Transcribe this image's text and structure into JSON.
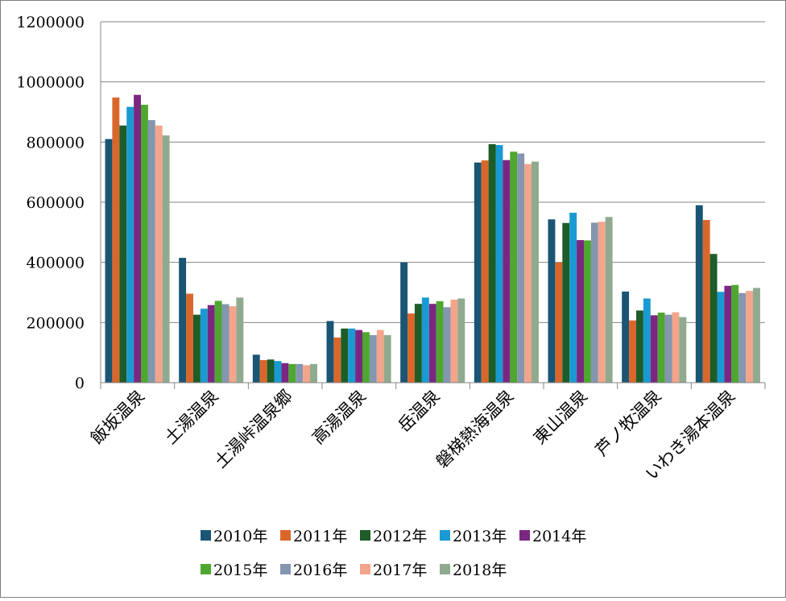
{
  "chart_data": {
    "type": "bar",
    "title": "",
    "xlabel": "",
    "ylabel": "",
    "ylim": [
      0,
      1200000
    ],
    "yticks": [
      "0",
      "200000",
      "400000",
      "600000",
      "800000",
      "1000000",
      "1200000"
    ],
    "grid": true,
    "legend_position": "bottom",
    "categories": [
      "飯坂温泉",
      "土湯温泉",
      "土湯峠温泉郷",
      "高湯温泉",
      "岳温泉",
      "磐梯熱海温泉",
      "東山温泉",
      "芦ノ牧温泉",
      "いわき湯本温泉"
    ],
    "series": [
      {
        "name": "2010年",
        "color": "#1a5574",
        "values": [
          810000,
          415000,
          93000,
          205000,
          400000,
          732000,
          543000,
          303000,
          590000
        ]
      },
      {
        "name": "2011年",
        "color": "#d9672b",
        "values": [
          948000,
          296000,
          75000,
          150000,
          230000,
          739000,
          400000,
          207000,
          541000
        ]
      },
      {
        "name": "2012年",
        "color": "#1e5c28",
        "values": [
          855000,
          226000,
          77000,
          180000,
          262000,
          793000,
          531000,
          240000,
          428000
        ]
      },
      {
        "name": "2013年",
        "color": "#1a9ad2",
        "values": [
          917000,
          246000,
          72000,
          180000,
          283000,
          790000,
          565000,
          280000,
          302000
        ]
      },
      {
        "name": "2014年",
        "color": "#7b2782",
        "values": [
          957000,
          258000,
          65000,
          175000,
          262000,
          740000,
          474000,
          224000,
          322000
        ]
      },
      {
        "name": "2015年",
        "color": "#4ea72e",
        "values": [
          924000,
          272000,
          62000,
          168000,
          271000,
          768000,
          473000,
          233000,
          325000
        ]
      },
      {
        "name": "2016年",
        "color": "#8496b0",
        "values": [
          873000,
          261000,
          62000,
          158000,
          251000,
          762000,
          532000,
          226000,
          298000
        ]
      },
      {
        "name": "2017年",
        "color": "#f2a58a",
        "values": [
          855000,
          254000,
          58000,
          175000,
          276000,
          727000,
          535000,
          234000,
          305000
        ]
      },
      {
        "name": "2018年",
        "color": "#8faa8e",
        "values": [
          822000,
          283000,
          62000,
          158000,
          280000,
          735000,
          551000,
          218000,
          315000
        ]
      }
    ]
  }
}
